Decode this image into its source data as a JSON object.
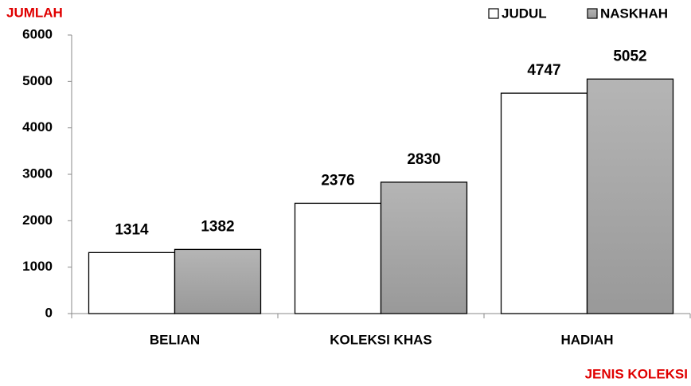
{
  "chart_data": {
    "type": "bar",
    "y_label": "JUMLAH",
    "x_label": "JENIS KOLEKSI",
    "categories": [
      "BELIAN",
      "KOLEKSI KHAS",
      "HADIAH"
    ],
    "series": [
      {
        "name": "JUDUL",
        "color": "#ffffff",
        "values": [
          1314,
          2376,
          4747
        ]
      },
      {
        "name": "NASKHAH",
        "color": "#b5b5b5",
        "values": [
          1382,
          2830,
          5052
        ]
      }
    ],
    "ylim": [
      0,
      6000
    ],
    "yticks": [
      0,
      1000,
      2000,
      3000,
      4000,
      5000,
      6000
    ],
    "legend": "top-right",
    "grid": false
  }
}
